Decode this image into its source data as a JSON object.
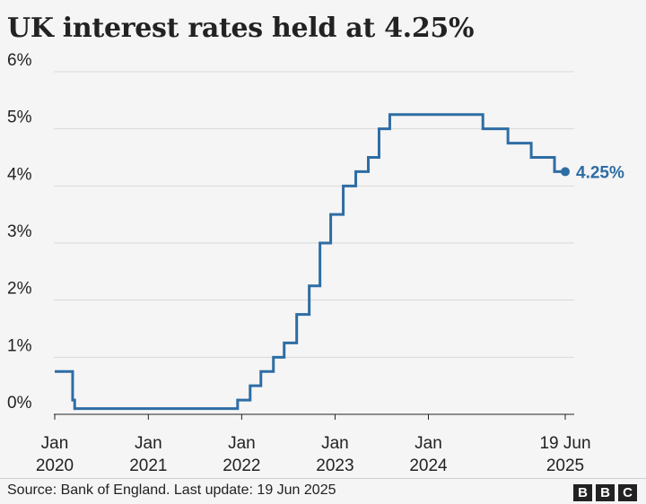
{
  "title": "UK interest rates held at 4.25%",
  "source": "Source: Bank of England. Last update: 19 Jun 2025",
  "logo": [
    "B",
    "B",
    "C"
  ],
  "colors": {
    "line": "#2e6da4",
    "grid": "#d9d9d9",
    "text": "#222222",
    "background": "#f5f5f5"
  },
  "chart_data": {
    "type": "line",
    "step": true,
    "title": "UK interest rates held at 4.25%",
    "xlabel": "",
    "ylabel": "",
    "ylim": [
      0,
      6
    ],
    "yticks": [
      "0%",
      "1%",
      "2%",
      "3%",
      "4%",
      "5%",
      "6%"
    ],
    "xticks": [
      {
        "date": "2020-01-01",
        "lines": [
          "Jan",
          "2020"
        ]
      },
      {
        "date": "2021-01-01",
        "lines": [
          "Jan",
          "2021"
        ]
      },
      {
        "date": "2022-01-01",
        "lines": [
          "Jan",
          "2022"
        ]
      },
      {
        "date": "2023-01-01",
        "lines": [
          "Jan",
          "2023"
        ]
      },
      {
        "date": "2024-01-01",
        "lines": [
          "Jan",
          "2024"
        ]
      },
      {
        "date": "2025-06-19",
        "lines": [
          "19 Jun",
          "2025"
        ]
      }
    ],
    "grid": true,
    "series": [
      {
        "points": [
          [
            "2020-01-01",
            0.75
          ],
          [
            "2020-03-11",
            0.25
          ],
          [
            "2020-03-19",
            0.1
          ],
          [
            "2021-12-16",
            0.25
          ],
          [
            "2022-02-03",
            0.5
          ],
          [
            "2022-03-17",
            0.75
          ],
          [
            "2022-05-05",
            1.0
          ],
          [
            "2022-06-16",
            1.25
          ],
          [
            "2022-08-04",
            1.75
          ],
          [
            "2022-09-22",
            2.25
          ],
          [
            "2022-11-03",
            3.0
          ],
          [
            "2022-12-15",
            3.5
          ],
          [
            "2023-02-02",
            4.0
          ],
          [
            "2023-03-23",
            4.25
          ],
          [
            "2023-05-11",
            4.5
          ],
          [
            "2023-06-22",
            5.0
          ],
          [
            "2023-08-03",
            5.25
          ],
          [
            "2024-08-01",
            5.0
          ],
          [
            "2024-11-07",
            4.75
          ],
          [
            "2025-02-06",
            4.5
          ],
          [
            "2025-05-08",
            4.25
          ],
          [
            "2025-06-19",
            4.25
          ]
        ]
      }
    ],
    "end_label": "4.25%"
  }
}
